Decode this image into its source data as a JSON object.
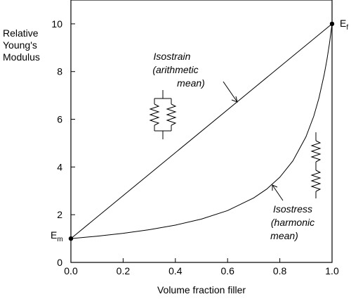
{
  "chart_data": {
    "type": "line",
    "xlabel": "Volume fraction filler",
    "ylabel_lines": [
      "Relative",
      "Young's",
      "Modulus"
    ],
    "xlim": [
      0,
      1
    ],
    "ylim": [
      0,
      11
    ],
    "xticks": [
      "0.0",
      "0.2",
      "0.4",
      "0.6",
      "0.8",
      "1.0"
    ],
    "xtick_values": [
      0,
      0.2,
      0.4,
      0.6,
      0.8,
      1.0
    ],
    "yticks": [
      "0",
      "2",
      "4",
      "6",
      "8",
      "10"
    ],
    "ytick_values": [
      0,
      2,
      4,
      6,
      8,
      10
    ],
    "grid": false,
    "series": [
      {
        "id": "isostrain",
        "x": [
          0,
          1
        ],
        "y": [
          1,
          10
        ]
      },
      {
        "id": "isostress",
        "x": [
          0,
          0.1,
          0.2,
          0.3,
          0.4,
          0.5,
          0.6,
          0.7,
          0.75,
          0.8,
          0.85,
          0.9,
          0.93,
          0.95,
          0.97,
          0.98,
          0.99,
          1.0
        ],
        "y": [
          1.0,
          1.099,
          1.22,
          1.37,
          1.563,
          1.818,
          2.174,
          2.703,
          3.077,
          3.571,
          4.255,
          5.263,
          6.135,
          6.897,
          7.874,
          8.475,
          9.174,
          10.0
        ]
      }
    ],
    "endpoints": [
      {
        "main": "E",
        "sub": "m",
        "x": 0,
        "y": 1
      },
      {
        "main": "E",
        "sub": "f",
        "x": 1,
        "y": 10
      }
    ],
    "annotations": [
      {
        "id": "isostrain-label",
        "lines": [
          "Isostrain",
          "(arithmetic",
          "mean)"
        ]
      },
      {
        "id": "isostress-label",
        "lines": [
          "Isostress",
          "(harmonic",
          "mean)"
        ]
      }
    ]
  }
}
